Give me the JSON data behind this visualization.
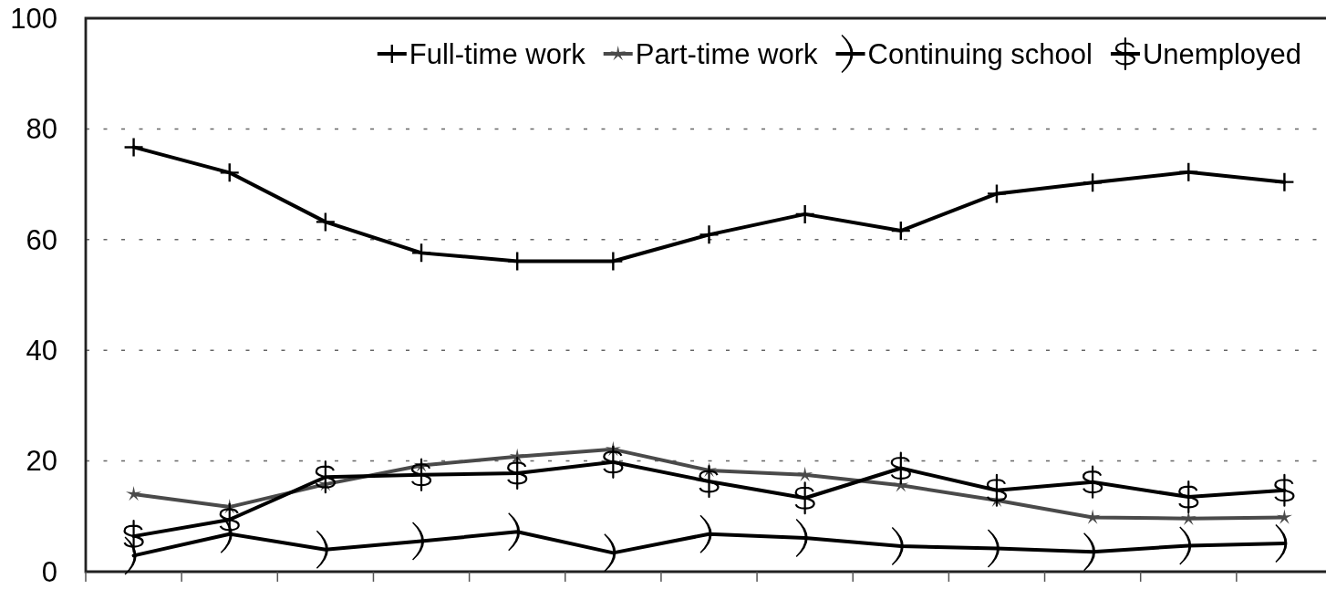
{
  "chart_data": {
    "type": "line",
    "categories": [
      null,
      null,
      null,
      null,
      null,
      null,
      null,
      null,
      null,
      null,
      null,
      null,
      null
    ],
    "series": [
      {
        "name": "Full-time work",
        "color": "#000000",
        "marker": "cross",
        "values": [
          76.7,
          72.1,
          63.2,
          57.6,
          56.1,
          56.1,
          60.9,
          64.6,
          61.6,
          68.3,
          70.3,
          72.2,
          70.4
        ]
      },
      {
        "name": "Part-time work",
        "color": "#4a4a4a",
        "marker": "star",
        "values": [
          14.0,
          11.7,
          15.8,
          19.2,
          20.8,
          22.1,
          18.3,
          17.5,
          15.6,
          12.9,
          9.8,
          9.6,
          9.8
        ]
      },
      {
        "name": "Continuing school",
        "color": "#000000",
        "marker": "triangle",
        "values": [
          2.9,
          6.8,
          4.0,
          5.5,
          7.2,
          3.4,
          6.8,
          6.1,
          4.6,
          4.2,
          3.6,
          4.7,
          5.1
        ]
      },
      {
        "name": "Unemployed",
        "color": "#000000",
        "marker": "cross",
        "values": [
          6.4,
          9.4,
          17.1,
          17.5,
          17.8,
          19.8,
          16.3,
          13.3,
          18.7,
          14.7,
          16.2,
          13.5,
          14.7
        ]
      }
    ],
    "ylim": [
      0,
      100
    ],
    "yticks": [
      0,
      20,
      40,
      60,
      80,
      100
    ],
    "grid": "y",
    "legend": "top right",
    "tick_labels": "y"
  }
}
